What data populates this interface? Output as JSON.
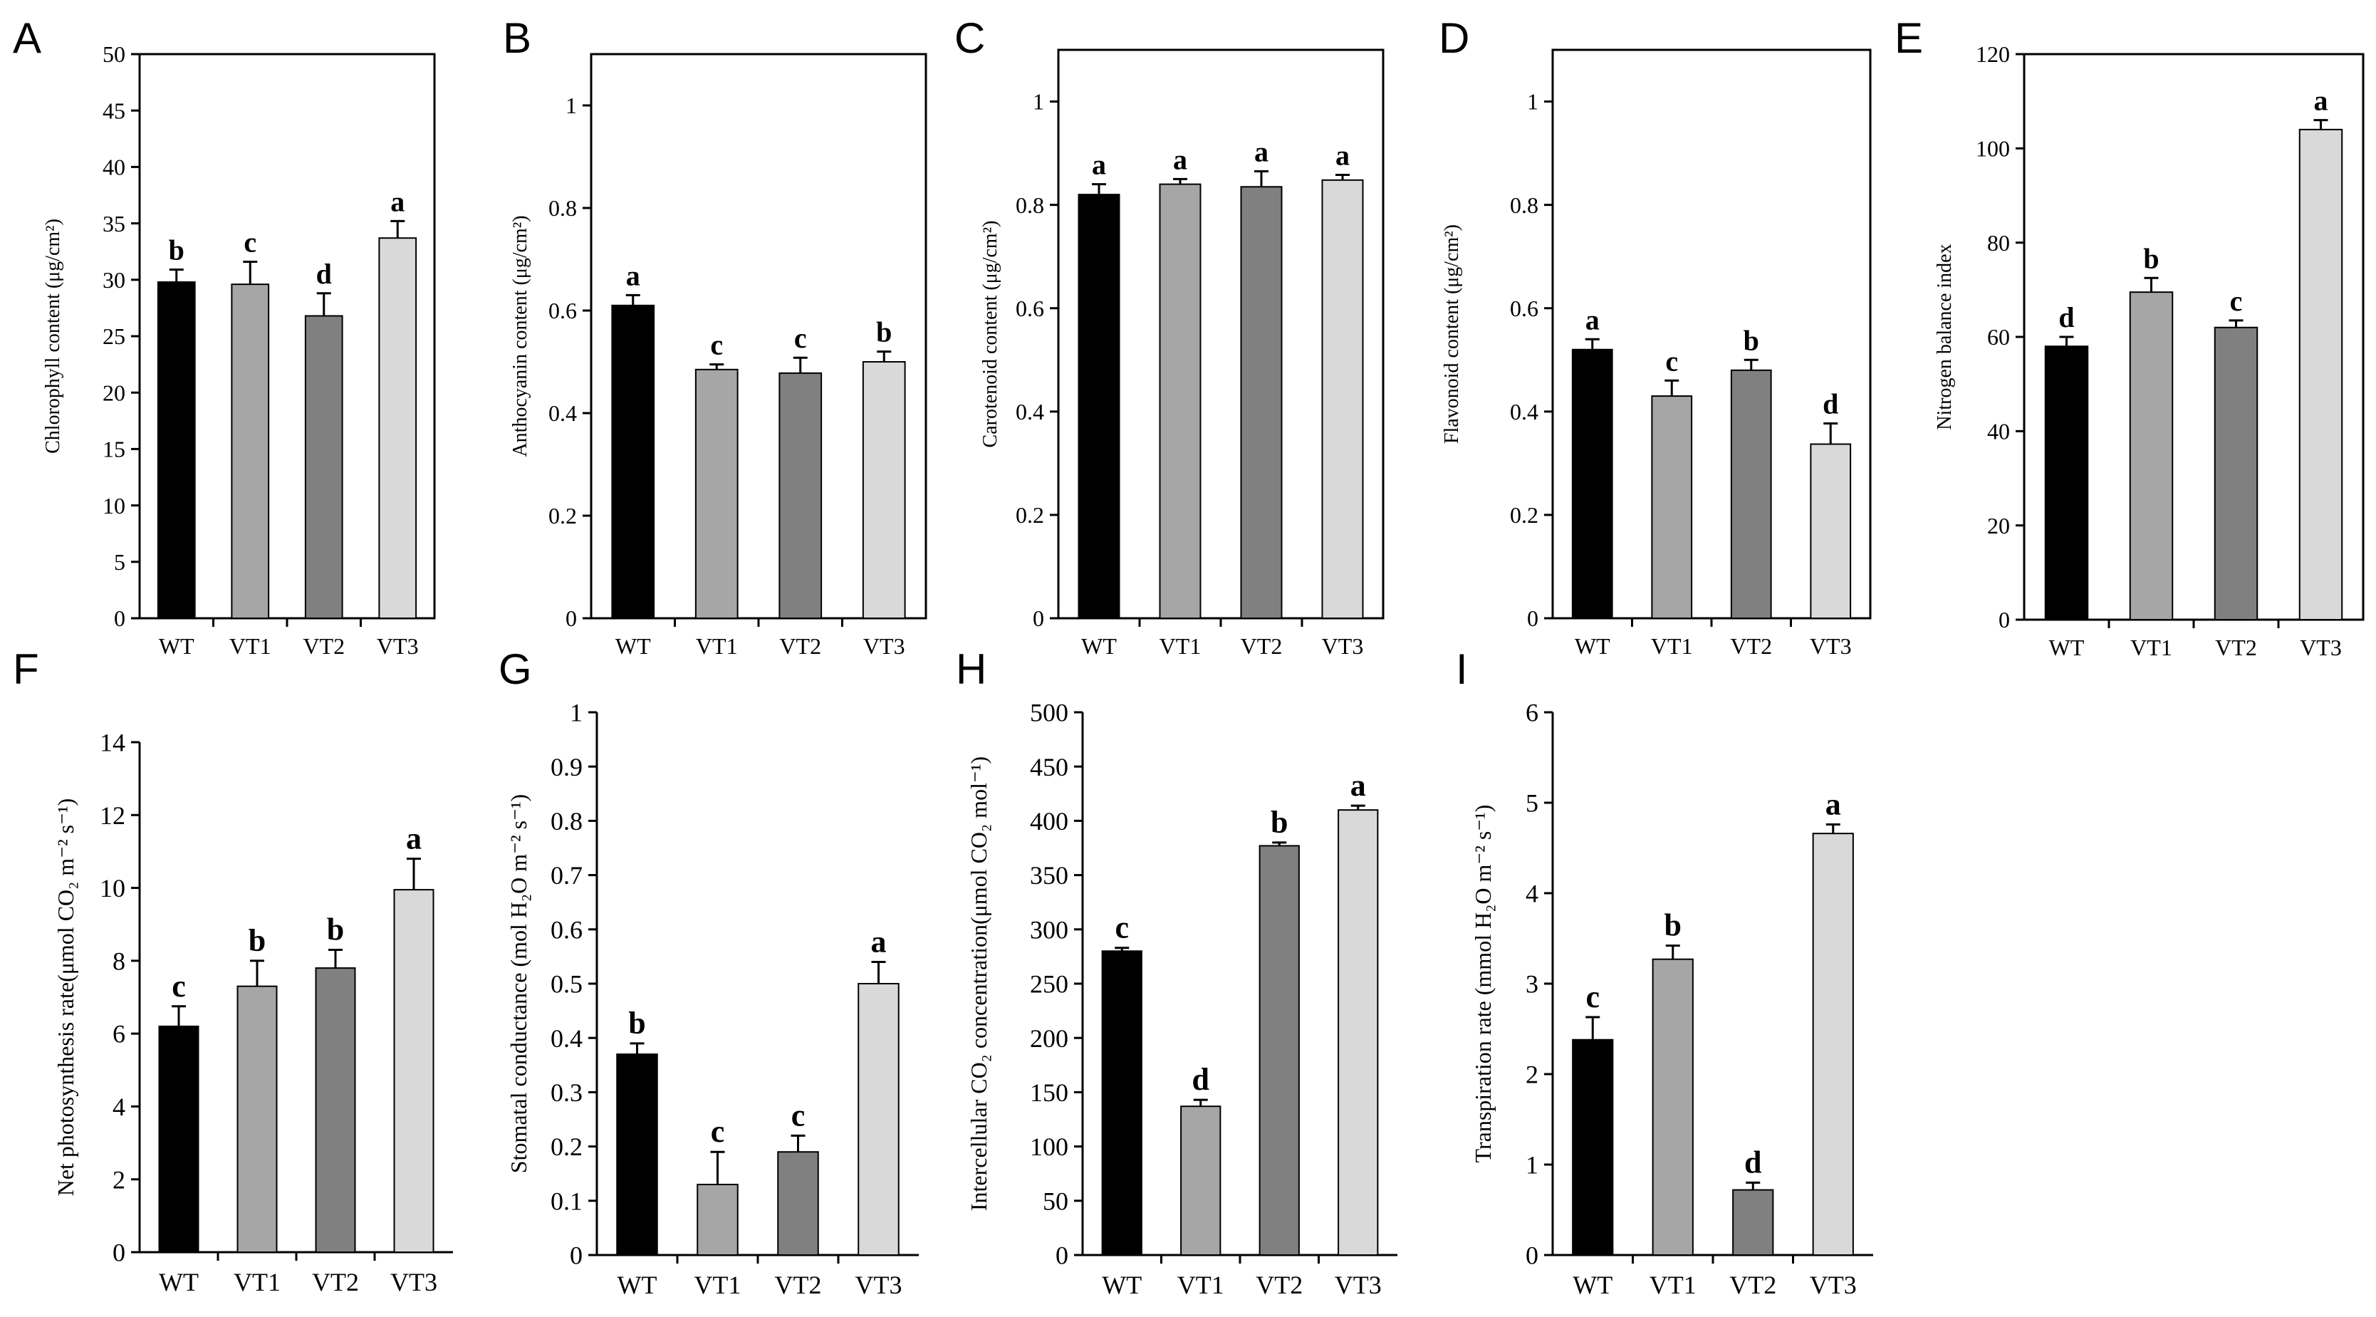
{
  "figure": {
    "colors": {
      "WT": "#000000",
      "VT1": "#a6a6a6",
      "VT2": "#808080",
      "VT3": "#d9d9d9",
      "axis": "#000000",
      "background": "#ffffff"
    }
  },
  "chart_data": [
    {
      "panel": "A",
      "type": "bar",
      "categories": [
        "WT",
        "VT1",
        "VT2",
        "VT3"
      ],
      "values": [
        29.8,
        29.6,
        26.8,
        33.7
      ],
      "errors": [
        1.1,
        2.0,
        2.0,
        1.5
      ],
      "significance": [
        "b",
        "c",
        "d",
        "a"
      ],
      "ylabel": "Chlorophyll content (μg/cm²)",
      "xlabel": "",
      "ylim": [
        0,
        50
      ],
      "yticks": [
        0,
        5,
        10,
        15,
        20,
        25,
        30,
        35,
        40,
        45,
        50
      ],
      "ytick_labels": [
        "0",
        "5",
        "10",
        "15",
        "20",
        "25",
        "30",
        "35",
        "40",
        "45",
        "50"
      ],
      "frame": "box"
    },
    {
      "panel": "B",
      "type": "bar",
      "categories": [
        "WT",
        "VT1",
        "VT2",
        "VT3"
      ],
      "values": [
        0.61,
        0.485,
        0.478,
        0.5
      ],
      "errors": [
        0.02,
        0.01,
        0.03,
        0.02
      ],
      "significance": [
        "a",
        "c",
        "c",
        "b"
      ],
      "ylabel": "Anthocyanin content (μg/cm²)",
      "xlabel": "",
      "ylim": [
        0,
        1.1
      ],
      "yticks": [
        0,
        0.2,
        0.4,
        0.6,
        0.8,
        1
      ],
      "ytick_labels": [
        "0",
        "0.2",
        "0.4",
        "0.6",
        "0.8",
        "1"
      ],
      "frame": "box"
    },
    {
      "panel": "C",
      "type": "bar",
      "categories": [
        "WT",
        "VT1",
        "VT2",
        "VT3"
      ],
      "values": [
        0.82,
        0.84,
        0.835,
        0.848
      ],
      "errors": [
        0.02,
        0.01,
        0.03,
        0.01
      ],
      "significance": [
        "a",
        "a",
        "a",
        "a"
      ],
      "ylabel": "Carotenoid content (μg/cm²)",
      "xlabel": "",
      "ylim": [
        0,
        1.1
      ],
      "yticks": [
        0,
        0.2,
        0.4,
        0.6,
        0.8,
        1
      ],
      "ytick_labels": [
        "0",
        "0.2",
        "0.4",
        "0.6",
        "0.8",
        "1"
      ],
      "frame": "box"
    },
    {
      "panel": "D",
      "type": "bar",
      "categories": [
        "WT",
        "VT1",
        "VT2",
        "VT3"
      ],
      "values": [
        0.52,
        0.43,
        0.48,
        0.337
      ],
      "errors": [
        0.02,
        0.03,
        0.02,
        0.04
      ],
      "significance": [
        "a",
        "c",
        "b",
        "d"
      ],
      "ylabel": "Flavonoid content (μg/cm²)",
      "xlabel": "",
      "ylim": [
        0,
        1.1
      ],
      "yticks": [
        0,
        0.2,
        0.4,
        0.6,
        0.8,
        1
      ],
      "ytick_labels": [
        "0",
        "0.2",
        "0.4",
        "0.6",
        "0.8",
        "1"
      ],
      "frame": "box"
    },
    {
      "panel": "E",
      "type": "bar",
      "categories": [
        "WT",
        "VT1",
        "VT2",
        "VT3"
      ],
      "values": [
        58,
        69.5,
        62,
        104
      ],
      "errors": [
        2,
        3,
        1.5,
        2
      ],
      "significance": [
        "d",
        "b",
        "c",
        "a"
      ],
      "ylabel": "Nitrogen balance index",
      "xlabel": "",
      "ylim": [
        0,
        120
      ],
      "yticks": [
        0,
        20,
        40,
        60,
        80,
        100,
        120
      ],
      "ytick_labels": [
        "0",
        "20",
        "40",
        "60",
        "80",
        "100",
        "120"
      ],
      "frame": "box"
    },
    {
      "panel": "F",
      "type": "bar",
      "categories": [
        "WT",
        "VT1",
        "VT2",
        "VT3"
      ],
      "values": [
        6.2,
        7.3,
        7.8,
        9.95
      ],
      "errors": [
        0.55,
        0.7,
        0.5,
        0.85
      ],
      "significance": [
        "c",
        "b",
        "b",
        "a"
      ],
      "ylabel": "Net photosynthesis rate(μmol CO₂ m⁻² s⁻¹)",
      "xlabel": "",
      "ylim": [
        0,
        14
      ],
      "yticks": [
        0,
        2,
        4,
        6,
        8,
        10,
        12,
        14
      ],
      "ytick_labels": [
        "0",
        "2",
        "4",
        "6",
        "8",
        "10",
        "12",
        "14"
      ],
      "frame": "axes"
    },
    {
      "panel": "G",
      "type": "bar",
      "categories": [
        "WT",
        "VT1",
        "VT2",
        "VT3"
      ],
      "values": [
        0.37,
        0.13,
        0.19,
        0.5
      ],
      "errors": [
        0.02,
        0.06,
        0.03,
        0.04
      ],
      "significance": [
        "b",
        "c",
        "c",
        "a"
      ],
      "ylabel": "Stomatal conductance (mol H₂O m⁻² s⁻¹)",
      "xlabel": "",
      "ylim": [
        0,
        1
      ],
      "yticks": [
        0,
        0.1,
        0.2,
        0.3,
        0.4,
        0.5,
        0.6,
        0.7,
        0.8,
        0.9,
        1
      ],
      "ytick_labels": [
        "0",
        "0.1",
        "0.2",
        "0.3",
        "0.4",
        "0.5",
        "0.6",
        "0.7",
        "0.8",
        "0.9",
        "1"
      ],
      "frame": "axes"
    },
    {
      "panel": "H",
      "type": "bar",
      "categories": [
        "WT",
        "VT1",
        "VT2",
        "VT3"
      ],
      "values": [
        280,
        137,
        377,
        410
      ],
      "errors": [
        3,
        6,
        3,
        4
      ],
      "significance": [
        "c",
        "d",
        "b",
        "a"
      ],
      "ylabel": "Intercellular CO₂ concentration(μmol CO₂ mol⁻¹)",
      "xlabel": "",
      "ylim": [
        0,
        500
      ],
      "yticks": [
        0,
        50,
        100,
        150,
        200,
        250,
        300,
        350,
        400,
        450,
        500
      ],
      "ytick_labels": [
        "0",
        "50",
        "100",
        "150",
        "200",
        "250",
        "300",
        "350",
        "400",
        "450",
        "500"
      ],
      "frame": "axes"
    },
    {
      "panel": "I",
      "type": "bar",
      "categories": [
        "WT",
        "VT1",
        "VT2",
        "VT3"
      ],
      "values": [
        2.38,
        3.27,
        0.72,
        4.66
      ],
      "errors": [
        0.25,
        0.15,
        0.08,
        0.1
      ],
      "significance": [
        "c",
        "b",
        "d",
        "a"
      ],
      "ylabel": "Transpiration rate (mmol H₂O m⁻² s⁻¹)",
      "xlabel": "",
      "ylim": [
        0,
        6
      ],
      "yticks": [
        0,
        1,
        2,
        3,
        4,
        5,
        6
      ],
      "ytick_labels": [
        "0",
        "1",
        "2",
        "3",
        "4",
        "5",
        "6"
      ],
      "frame": "axes"
    }
  ]
}
